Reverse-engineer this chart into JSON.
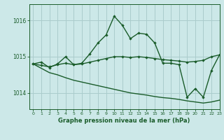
{
  "title": "Graphe pression niveau de la mer (hPa)",
  "background_color": "#cce8e8",
  "grid_color": "#aacccc",
  "line_color": "#1a5c2a",
  "xlim": [
    -0.5,
    23
  ],
  "ylim": [
    1013.55,
    1016.45
  ],
  "yticks": [
    1014,
    1015,
    1016
  ],
  "xtick_labels": [
    "0",
    "1",
    "2",
    "3",
    "4",
    "5",
    "6",
    "7",
    "8",
    "9",
    "10",
    "11",
    "12",
    "13",
    "14",
    "15",
    "16",
    "17",
    "18",
    "19",
    "20",
    "21",
    "22",
    "23"
  ],
  "xtick_pos": [
    0,
    1,
    2,
    3,
    4,
    5,
    6,
    7,
    8,
    9,
    10,
    11,
    12,
    13,
    14,
    15,
    16,
    17,
    18,
    19,
    20,
    21,
    22,
    23
  ],
  "series1_x": [
    0,
    1,
    2,
    3,
    4,
    5,
    6,
    7,
    8,
    9,
    10,
    11,
    12,
    13,
    14,
    15,
    16,
    17,
    18,
    19,
    20,
    21,
    22,
    23
  ],
  "series1_y": [
    1014.8,
    1014.85,
    1014.7,
    1014.8,
    1015.0,
    1014.78,
    1014.82,
    1015.08,
    1015.38,
    1015.6,
    1016.12,
    1015.87,
    1015.5,
    1015.65,
    1015.62,
    1015.38,
    1014.82,
    1014.82,
    1014.78,
    1013.88,
    1014.12,
    1013.88,
    1014.62,
    1015.05
  ],
  "series2_x": [
    0,
    1,
    2,
    3,
    4,
    5,
    6,
    7,
    8,
    9,
    10,
    11,
    12,
    13,
    14,
    15,
    16,
    17,
    18,
    19,
    20,
    21,
    22,
    23
  ],
  "series2_y": [
    1014.8,
    1014.76,
    1014.72,
    1014.78,
    1014.82,
    1014.78,
    1014.8,
    1014.85,
    1014.9,
    1014.95,
    1015.0,
    1015.0,
    1014.98,
    1015.0,
    1014.98,
    1014.95,
    1014.92,
    1014.9,
    1014.88,
    1014.85,
    1014.87,
    1014.9,
    1015.0,
    1015.05
  ],
  "series3_x": [
    0,
    1,
    2,
    3,
    4,
    5,
    6,
    7,
    8,
    9,
    10,
    11,
    12,
    13,
    14,
    15,
    16,
    17,
    18,
    19,
    20,
    21,
    22,
    23
  ],
  "series3_y": [
    1014.8,
    1014.68,
    1014.56,
    1014.5,
    1014.42,
    1014.35,
    1014.3,
    1014.25,
    1014.2,
    1014.15,
    1014.1,
    1014.05,
    1014.0,
    1013.97,
    1013.94,
    1013.9,
    1013.87,
    1013.85,
    1013.82,
    1013.78,
    1013.75,
    1013.72,
    1013.75,
    1013.8
  ]
}
